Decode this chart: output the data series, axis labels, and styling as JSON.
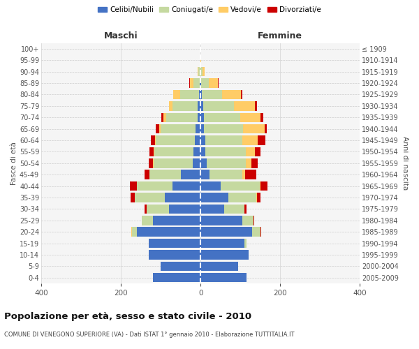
{
  "age_groups": [
    "0-4",
    "5-9",
    "10-14",
    "15-19",
    "20-24",
    "25-29",
    "30-34",
    "35-39",
    "40-44",
    "45-49",
    "50-54",
    "55-59",
    "60-64",
    "65-69",
    "70-74",
    "75-79",
    "80-84",
    "85-89",
    "90-94",
    "95-99",
    "100+"
  ],
  "birth_years": [
    "2005-2009",
    "2000-2004",
    "1995-1999",
    "1990-1994",
    "1985-1989",
    "1980-1984",
    "1975-1979",
    "1970-1974",
    "1965-1969",
    "1960-1964",
    "1955-1959",
    "1950-1954",
    "1945-1949",
    "1940-1944",
    "1935-1939",
    "1930-1934",
    "1925-1929",
    "1920-1924",
    "1915-1919",
    "1910-1914",
    "≤ 1909"
  ],
  "maschi": {
    "celibi": [
      120,
      100,
      130,
      130,
      160,
      120,
      80,
      90,
      70,
      50,
      20,
      18,
      15,
      12,
      8,
      8,
      4,
      2,
      1,
      0,
      0
    ],
    "coniugati": [
      0,
      0,
      0,
      0,
      12,
      28,
      55,
      75,
      90,
      78,
      98,
      98,
      98,
      88,
      78,
      62,
      48,
      16,
      4,
      0,
      0
    ],
    "vedovi": [
      0,
      0,
      0,
      0,
      2,
      0,
      0,
      0,
      0,
      0,
      2,
      2,
      2,
      4,
      8,
      10,
      16,
      8,
      2,
      1,
      0
    ],
    "divorziati": [
      0,
      0,
      0,
      0,
      0,
      0,
      5,
      10,
      18,
      12,
      10,
      10,
      10,
      8,
      5,
      0,
      0,
      2,
      0,
      0,
      0
    ]
  },
  "femmine": {
    "nubili": [
      115,
      95,
      120,
      110,
      130,
      105,
      60,
      70,
      50,
      22,
      15,
      12,
      12,
      8,
      8,
      6,
      4,
      2,
      0,
      0,
      0
    ],
    "coniugate": [
      0,
      0,
      0,
      5,
      20,
      28,
      50,
      70,
      98,
      82,
      98,
      102,
      92,
      98,
      92,
      78,
      50,
      18,
      5,
      0,
      0
    ],
    "vedove": [
      0,
      0,
      0,
      0,
      0,
      0,
      0,
      2,
      2,
      8,
      15,
      22,
      40,
      55,
      50,
      52,
      48,
      24,
      5,
      1,
      0
    ],
    "divorziate": [
      0,
      0,
      0,
      0,
      2,
      2,
      5,
      8,
      18,
      28,
      15,
      15,
      18,
      5,
      8,
      5,
      2,
      2,
      0,
      0,
      0
    ]
  },
  "colors": {
    "celibi": "#4472C4",
    "coniugati": "#C5D9A0",
    "vedovi": "#FFCC66",
    "divorziati": "#CC0000"
  },
  "xlim": [
    -400,
    400
  ],
  "xticks": [
    -400,
    -200,
    0,
    200,
    400
  ],
  "title": "Popolazione per età, sesso e stato civile - 2010",
  "subtitle": "COMUNE DI VENEGONO SUPERIORE (VA) - Dati ISTAT 1° gennaio 2010 - Elaborazione TUTTITALIA.IT",
  "ylabel_left": "Fasce di età",
  "ylabel_right": "Anni di nascita",
  "maschi_label": "Maschi",
  "femmine_label": "Femmine",
  "legend_labels": [
    "Celibi/Nubili",
    "Coniugati/e",
    "Vedovi/e",
    "Divorziati/e"
  ],
  "bg_color": "#ffffff",
  "plot_bg": "#f5f5f5",
  "grid_color": "#dddddd"
}
